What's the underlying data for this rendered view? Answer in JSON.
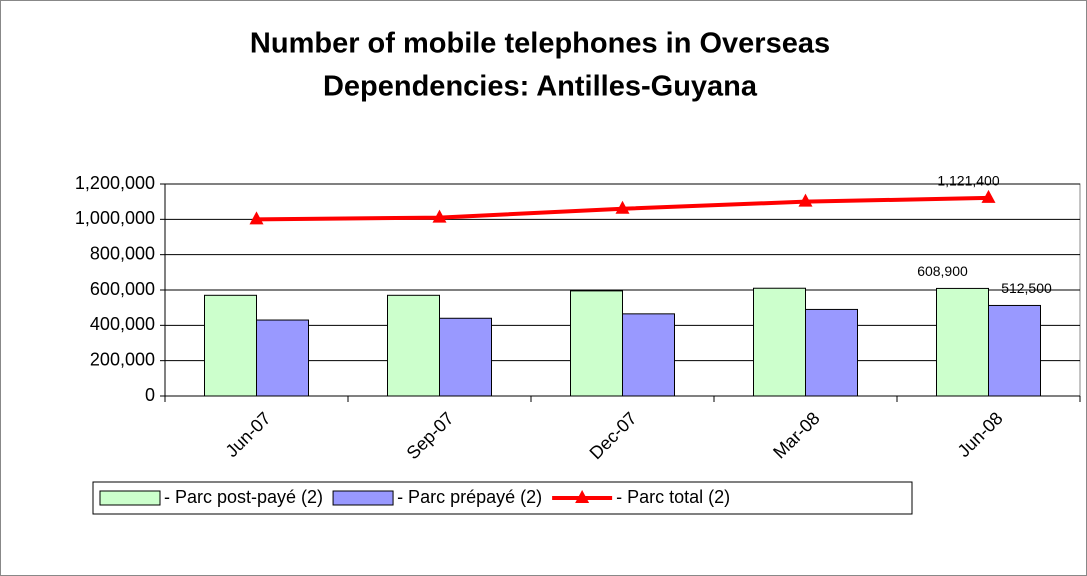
{
  "chart_data": {
    "type": "bar",
    "title": "Number of mobile telephones in Overseas",
    "subtitle": "Dependencies: Antilles-Guyana",
    "categories": [
      "Jun-07",
      "Sep-07",
      "Dec-07",
      "Mar-08",
      "Jun-08"
    ],
    "series": [
      {
        "name": "- Parc post-payé (2)",
        "type": "bar",
        "color": "#ccffcc",
        "values": [
          570000,
          570000,
          595000,
          610000,
          608900
        ],
        "value_labels": [
          null,
          null,
          null,
          null,
          "608,900"
        ]
      },
      {
        "name": "- Parc prépayé (2)",
        "type": "bar",
        "color": "#9999ff",
        "values": [
          430000,
          440000,
          465000,
          490000,
          512500
        ],
        "value_labels": [
          null,
          null,
          null,
          null,
          "512,500"
        ]
      },
      {
        "name": "- Parc total (2)",
        "type": "line",
        "color": "#ff0000",
        "values": [
          1000000,
          1010000,
          1060000,
          1100000,
          1121400
        ],
        "value_labels": [
          null,
          null,
          null,
          null,
          "1,121,400"
        ]
      }
    ],
    "ylim": [
      0,
      1200000
    ],
    "yticks": [
      0,
      {
        "value": 200000,
        "label": "200,000"
      },
      {
        "value": 400000,
        "label": "400,000"
      },
      {
        "value": 600000,
        "label": "600,000"
      },
      {
        "value": 800000,
        "label": "800,000"
      },
      {
        "value": 1000000,
        "label": "1,000,000"
      },
      {
        "value": 1200000,
        "label": "1,200,000"
      }
    ],
    "grid": true,
    "legend": "bottom"
  }
}
